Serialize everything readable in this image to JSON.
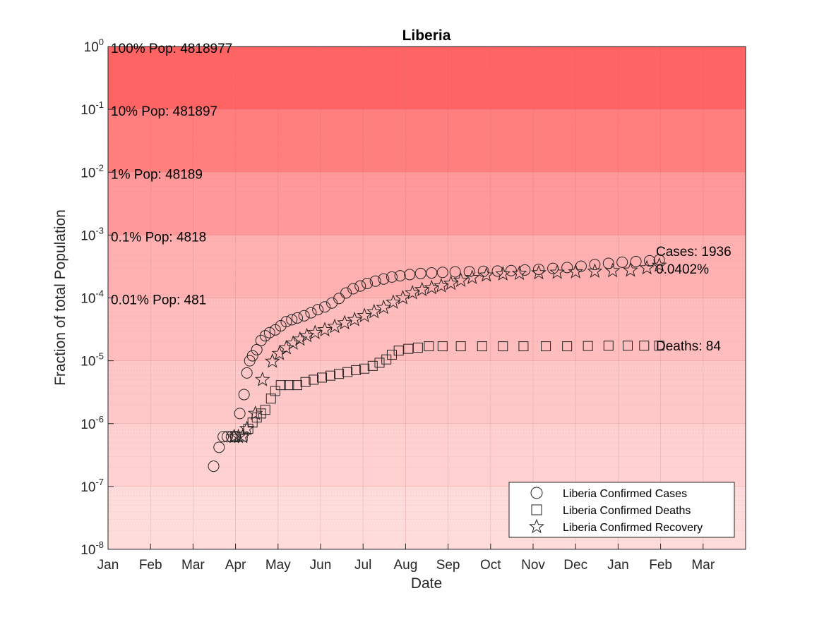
{
  "chart_data": {
    "type": "scatter",
    "title": "Liberia",
    "xlabel": "Date",
    "ylabel": "Fraction of total Population",
    "yscale": "log",
    "ylim": [
      1e-08,
      1
    ],
    "y_tick_exponents": [
      -8,
      -7,
      -6,
      -5,
      -4,
      -3,
      -2,
      -1,
      0
    ],
    "x_tick_labels": [
      "Jan",
      "Feb",
      "Mar",
      "Apr",
      "May",
      "Jun",
      "Jul",
      "Aug",
      "Sep",
      "Oct",
      "Nov",
      "Dec",
      "Jan",
      "Feb",
      "Mar"
    ],
    "x_range_months": [
      0,
      15
    ],
    "grid": true,
    "bands": [
      {
        "lo": -1,
        "hi": 0,
        "color": "#ff6464",
        "label": "100% Pop: 4818977"
      },
      {
        "lo": -2,
        "hi": -1,
        "color": "#ff7e7e",
        "label": "10% Pop: 481897"
      },
      {
        "lo": -3,
        "hi": -2,
        "color": "#ff9898",
        "label": "1% Pop: 48189"
      },
      {
        "lo": -4,
        "hi": -3,
        "color": "#ffb1b1",
        "label": "0.1% Pop: 4818"
      },
      {
        "lo": -5,
        "hi": -4,
        "color": "#ffbdbd",
        "label": "0.01% Pop: 481"
      },
      {
        "lo": -6,
        "hi": -5,
        "color": "#ffc8c8",
        "label": ""
      },
      {
        "lo": -7,
        "hi": -6,
        "color": "#ffd1d1",
        "label": ""
      },
      {
        "lo": -8,
        "hi": -7,
        "color": "#ffdcdc",
        "label": ""
      }
    ],
    "series": [
      {
        "name": "Liberia Confirmed Cases",
        "marker": "circle",
        "points": [
          [
            "2020-03-16",
            2.1e-07
          ],
          [
            "2020-03-20",
            4.2e-07
          ],
          [
            "2020-03-23",
            6.2e-07
          ],
          [
            "2020-03-26",
            6.2e-07
          ],
          [
            "2020-03-29",
            6.2e-07
          ],
          [
            "2020-04-01",
            6.2e-07
          ],
          [
            "2020-04-04",
            1.45e-06
          ],
          [
            "2020-04-07",
            2.9e-06
          ],
          [
            "2020-04-09",
            6.4e-06
          ],
          [
            "2020-04-11",
            1e-05
          ],
          [
            "2020-04-13",
            1.2e-05
          ],
          [
            "2020-04-16",
            1.5e-05
          ],
          [
            "2020-04-19",
            2.1e-05
          ],
          [
            "2020-04-22",
            2.5e-05
          ],
          [
            "2020-04-25",
            2.8e-05
          ],
          [
            "2020-04-29",
            3.1e-05
          ],
          [
            "2020-05-03",
            3.6e-05
          ],
          [
            "2020-05-07",
            4.2e-05
          ],
          [
            "2020-05-11",
            4.5e-05
          ],
          [
            "2020-05-15",
            4.8e-05
          ],
          [
            "2020-05-20",
            5.2e-05
          ],
          [
            "2020-05-25",
            5.8e-05
          ],
          [
            "2020-05-30",
            6.5e-05
          ],
          [
            "2020-06-04",
            7.2e-05
          ],
          [
            "2020-06-09",
            8.3e-05
          ],
          [
            "2020-06-14",
            9.8e-05
          ],
          [
            "2020-06-19",
            0.00012
          ],
          [
            "2020-06-24",
            0.00014
          ],
          [
            "2020-06-29",
            0.000155
          ],
          [
            "2020-07-04",
            0.00017
          ],
          [
            "2020-07-10",
            0.000185
          ],
          [
            "2020-07-16",
            0.0002
          ],
          [
            "2020-07-22",
            0.000215
          ],
          [
            "2020-07-28",
            0.000225
          ],
          [
            "2020-08-04",
            0.000235
          ],
          [
            "2020-08-12",
            0.000245
          ],
          [
            "2020-08-20",
            0.00025
          ],
          [
            "2020-08-28",
            0.000255
          ],
          [
            "2020-09-06",
            0.00026
          ],
          [
            "2020-09-16",
            0.000262
          ],
          [
            "2020-09-26",
            0.000265
          ],
          [
            "2020-10-06",
            0.000268
          ],
          [
            "2020-10-16",
            0.000272
          ],
          [
            "2020-10-26",
            0.000278
          ],
          [
            "2020-11-05",
            0.000285
          ],
          [
            "2020-11-15",
            0.000295
          ],
          [
            "2020-11-25",
            0.000305
          ],
          [
            "2020-12-05",
            0.00032
          ],
          [
            "2020-12-15",
            0.00034
          ],
          [
            "2020-12-25",
            0.000355
          ],
          [
            "2021-01-04",
            0.00037
          ],
          [
            "2021-01-14",
            0.00038
          ],
          [
            "2021-01-24",
            0.00039
          ],
          [
            "2021-01-31",
            0.000402
          ]
        ]
      },
      {
        "name": "Liberia Confirmed Deaths",
        "marker": "square",
        "points": [
          [
            "2020-04-01",
            6.2e-07
          ],
          [
            "2020-04-06",
            6.2e-07
          ],
          [
            "2020-04-10",
            8.3e-07
          ],
          [
            "2020-04-13",
            1.04e-06
          ],
          [
            "2020-04-16",
            1.25e-06
          ],
          [
            "2020-04-19",
            1.45e-06
          ],
          [
            "2020-04-22",
            1.66e-06
          ],
          [
            "2020-04-26",
            2.5e-06
          ],
          [
            "2020-04-29",
            3.3e-06
          ],
          [
            "2020-05-03",
            4.1e-06
          ],
          [
            "2020-05-09",
            4.1e-06
          ],
          [
            "2020-05-15",
            4.1e-06
          ],
          [
            "2020-05-21",
            4.6e-06
          ],
          [
            "2020-05-27",
            5e-06
          ],
          [
            "2020-06-02",
            5.4e-06
          ],
          [
            "2020-06-08",
            5.8e-06
          ],
          [
            "2020-06-14",
            6.2e-06
          ],
          [
            "2020-06-20",
            6.6e-06
          ],
          [
            "2020-06-26",
            7.1e-06
          ],
          [
            "2020-07-02",
            7.5e-06
          ],
          [
            "2020-07-08",
            8.3e-06
          ],
          [
            "2020-07-13",
            9.3e-06
          ],
          [
            "2020-07-18",
            1.05e-05
          ],
          [
            "2020-07-22",
            1.25e-05
          ],
          [
            "2020-07-27",
            1.45e-05
          ],
          [
            "2020-08-03",
            1.55e-05
          ],
          [
            "2020-08-10",
            1.62e-05
          ],
          [
            "2020-08-18",
            1.7e-05
          ],
          [
            "2020-08-28",
            1.7e-05
          ],
          [
            "2020-09-10",
            1.7e-05
          ],
          [
            "2020-09-25",
            1.7e-05
          ],
          [
            "2020-10-10",
            1.7e-05
          ],
          [
            "2020-10-25",
            1.7e-05
          ],
          [
            "2020-11-10",
            1.7e-05
          ],
          [
            "2020-11-25",
            1.7e-05
          ],
          [
            "2020-12-10",
            1.72e-05
          ],
          [
            "2020-12-25",
            1.74e-05
          ],
          [
            "2021-01-08",
            1.74e-05
          ],
          [
            "2021-01-20",
            1.74e-05
          ],
          [
            "2021-01-31",
            1.74e-05
          ]
        ]
      },
      {
        "name": "Liberia Confirmed Recovery",
        "marker": "star",
        "points": [
          [
            "2020-03-31",
            6.2e-07
          ],
          [
            "2020-04-03",
            6.2e-07
          ],
          [
            "2020-04-06",
            6.2e-07
          ],
          [
            "2020-04-09",
            8.3e-07
          ],
          [
            "2020-04-15",
            1.45e-06
          ],
          [
            "2020-04-20",
            5e-06
          ],
          [
            "2020-04-27",
            9.8e-06
          ],
          [
            "2020-05-02",
            1.3e-05
          ],
          [
            "2020-05-07",
            1.6e-05
          ],
          [
            "2020-05-12",
            1.9e-05
          ],
          [
            "2020-05-17",
            2.2e-05
          ],
          [
            "2020-05-22",
            2.5e-05
          ],
          [
            "2020-05-28",
            2.8e-05
          ],
          [
            "2020-06-04",
            3.1e-05
          ],
          [
            "2020-06-11",
            3.5e-05
          ],
          [
            "2020-06-18",
            4e-05
          ],
          [
            "2020-06-25",
            4.5e-05
          ],
          [
            "2020-07-02",
            5.2e-05
          ],
          [
            "2020-07-09",
            6e-05
          ],
          [
            "2020-07-16",
            7e-05
          ],
          [
            "2020-07-23",
            8.5e-05
          ],
          [
            "2020-07-30",
            0.0001
          ],
          [
            "2020-08-06",
            0.00012
          ],
          [
            "2020-08-13",
            0.000135
          ],
          [
            "2020-08-20",
            0.000145
          ],
          [
            "2020-08-27",
            0.000155
          ],
          [
            "2020-09-03",
            0.00017
          ],
          [
            "2020-09-10",
            0.00019
          ],
          [
            "2020-09-18",
            0.00021
          ],
          [
            "2020-09-28",
            0.00023
          ],
          [
            "2020-10-10",
            0.00024
          ],
          [
            "2020-10-22",
            0.000245
          ],
          [
            "2020-11-05",
            0.00025
          ],
          [
            "2020-11-18",
            0.000255
          ],
          [
            "2020-12-01",
            0.00026
          ],
          [
            "2020-12-15",
            0.000265
          ],
          [
            "2020-12-28",
            0.00027
          ],
          [
            "2021-01-10",
            0.000275
          ],
          [
            "2021-01-22",
            0.0003
          ],
          [
            "2021-01-31",
            0.00033
          ]
        ]
      }
    ],
    "annotations": {
      "cases_label": "Cases: 1936",
      "cases_percent": "0.0402%",
      "deaths_label": "Deaths: 84"
    },
    "legend": {
      "placement": "bottom-right",
      "entries": [
        "Liberia Confirmed Cases",
        "Liberia Confirmed Deaths",
        "Liberia Confirmed Recovery"
      ]
    }
  }
}
